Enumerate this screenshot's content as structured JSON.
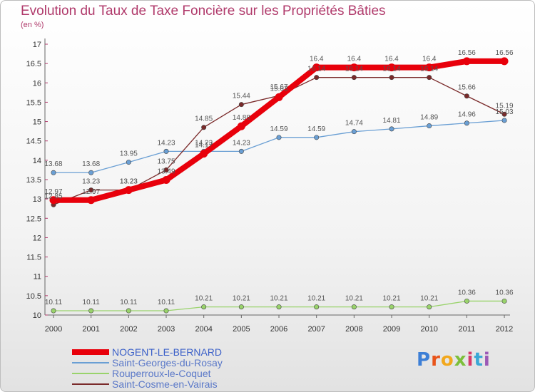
{
  "title": "Evolution du Taux de Taxe Foncière sur les Propriétés Bâties",
  "unit_label": "(en %)",
  "logo": "Proxiti",
  "chart_data": {
    "type": "line",
    "title": "Evolution du Taux de Taxe Foncière sur les Propriétés Bâties",
    "ylabel": "(en %)",
    "xlabel": "",
    "x": [
      "2000",
      "2001",
      "2002",
      "2003",
      "2004",
      "2005",
      "2006",
      "2007",
      "2008",
      "2009",
      "2010",
      "2011",
      "2012"
    ],
    "ylim": [
      10,
      17
    ],
    "yticks": [
      "10",
      "10.5",
      "11",
      "11.5",
      "12",
      "12.5",
      "13",
      "13.5",
      "14",
      "14.5",
      "15",
      "15.5",
      "16",
      "16.5",
      "17"
    ],
    "grid": false,
    "legend_position": "bottom-left",
    "series": [
      {
        "name": "NOGENT-LE-BERNARD",
        "color": "#e8000b",
        "values": [
          12.97,
          12.97,
          13.23,
          13.49,
          14.17,
          14.88,
          15.63,
          16.4,
          16.4,
          16.4,
          16.4,
          16.56,
          16.56
        ],
        "labels": [
          "12.97",
          "12.97",
          "13.23",
          "13.49",
          "14.17",
          "14.88",
          "15.63",
          "16.4",
          "16.4",
          "16.4",
          "16.4",
          "16.56",
          "16.56"
        ]
      },
      {
        "name": "Saint-Georges-du-Rosay",
        "color": "#6a9fd4",
        "values": [
          13.68,
          13.68,
          13.95,
          14.23,
          14.23,
          14.23,
          14.59,
          14.59,
          14.74,
          14.81,
          14.89,
          14.96,
          15.03
        ],
        "labels": [
          "13.68",
          "13.68",
          "13.95",
          "14.23",
          "14.23",
          "14.23",
          "14.59",
          "14.59",
          "14.74",
          "14.81",
          "14.89",
          "14.96",
          "15.03"
        ]
      },
      {
        "name": "Rouperroux-le-Coquet",
        "color": "#99d36b",
        "values": [
          10.11,
          10.11,
          10.11,
          10.11,
          10.21,
          10.21,
          10.21,
          10.21,
          10.21,
          10.21,
          10.21,
          10.36,
          10.36
        ],
        "labels": [
          "10.11",
          "10.11",
          "10.11",
          "10.11",
          "10.21",
          "10.21",
          "10.21",
          "10.21",
          "10.21",
          "10.21",
          "10.21",
          "10.36",
          "10.36"
        ]
      },
      {
        "name": "Saint-Cosme-en-Vairais",
        "color": "#7a2a2a",
        "values": [
          12.85,
          13.23,
          13.23,
          13.75,
          14.85,
          15.44,
          15.67,
          16.14,
          16.14,
          16.14,
          16.14,
          15.66,
          15.19
        ],
        "labels": [
          "12.85",
          "13.23",
          "13.23",
          "13.75",
          "14.85",
          "15.44",
          "15.67",
          "16.14",
          "16.14",
          "16.14",
          "16.14",
          "15.66",
          "15.19"
        ]
      }
    ]
  }
}
